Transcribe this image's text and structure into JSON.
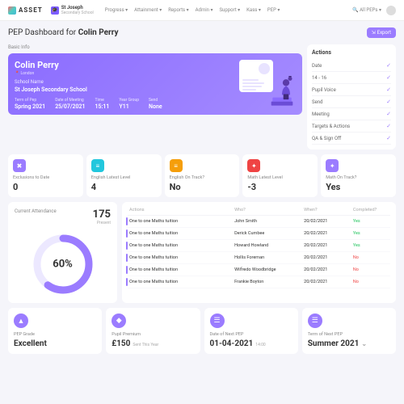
{
  "brand": "ASSET",
  "school": {
    "name": "St Joseph",
    "sub": "Secondary School"
  },
  "nav": [
    "Progress",
    "Attainment",
    "Reports",
    "Admin",
    "Support",
    "Kass",
    "PEP"
  ],
  "search": "All PEPs",
  "title_pre": "PEP Dashboard for ",
  "title_name": "Colin Perry",
  "export": "Export",
  "basicInfo": "Basic Info",
  "actionsLabel": "Actions",
  "hero": {
    "name": "Colin Perry",
    "location": "London",
    "schoolLabel": "School Name",
    "schoolValue": "St Joseph Secondary School",
    "fields": [
      {
        "l": "Term of Pep",
        "v": "Spring 2021"
      },
      {
        "l": "Date of Meeting",
        "v": "25/07/2021"
      },
      {
        "l": "Time",
        "v": "15:11"
      },
      {
        "l": "Year Group",
        "v": "Y11"
      },
      {
        "l": "Send",
        "v": "None"
      }
    ]
  },
  "actions": [
    "Date",
    "14 - 16",
    "Pupil Voice",
    "Send",
    "Meeting",
    "Targets & Actions",
    "QA & Sign Off"
  ],
  "stats": [
    {
      "icon": "✖",
      "color": "#9b7cff",
      "label": "Exclusions to Date",
      "value": "0"
    },
    {
      "icon": "≡",
      "color": "#22c7dd",
      "label": "English Latest Level",
      "value": "4"
    },
    {
      "icon": "≡",
      "color": "#f59e0b",
      "label": "English On Track?",
      "value": "No"
    },
    {
      "icon": "✦",
      "color": "#ef4444",
      "label": "Math Latest Level",
      "value": "-3"
    },
    {
      "icon": "✦",
      "color": "#9b7cff",
      "label": "Math On Track?",
      "value": "Yes"
    }
  ],
  "attendance": {
    "label": "Current Attendance",
    "present": "175",
    "presentLabel": "Present",
    "pct": "60%",
    "pctNum": 60,
    "ring": "#9b7cff",
    "ringBg": "#ece8ff"
  },
  "table": {
    "headers": [
      "Actions",
      "Who?",
      "When?",
      "Completed?"
    ],
    "rows": [
      {
        "a": "One to one Maths tuition",
        "w": "John Smith",
        "d": "20/02/2021",
        "c": "Yes",
        "ok": true
      },
      {
        "a": "One to one Maths tuition",
        "w": "Derick Cumbee",
        "d": "20/02/2021",
        "c": "Yes",
        "ok": true
      },
      {
        "a": "One to one Maths tuition",
        "w": "Howard Howland",
        "d": "20/02/2021",
        "c": "Yes",
        "ok": true
      },
      {
        "a": "One to one Maths tuition",
        "w": "Hollis Foreman",
        "d": "20/02/2021",
        "c": "No",
        "ok": false
      },
      {
        "a": "One to one Maths tuition",
        "w": "Wilfredo Woodbridge",
        "d": "20/02/2021",
        "c": "No",
        "ok": false
      },
      {
        "a": "One to one Maths tuition",
        "w": "Frankie Boyton",
        "d": "20/02/2021",
        "c": "No",
        "ok": false
      }
    ]
  },
  "bottom": [
    {
      "icon": "▲",
      "label": "PEP Grade",
      "value": "Excellent",
      "sub": ""
    },
    {
      "icon": "◆",
      "label": "Pupil Premium",
      "value": "£150",
      "sub": "Sent This Year"
    },
    {
      "icon": "☰",
      "label": "Date of Next PEP",
      "value": "01-04-2021",
      "sub": "14:00"
    },
    {
      "icon": "☰",
      "label": "Term of Next PEP",
      "value": "Summer 2021",
      "sub": "",
      "chev": true
    }
  ]
}
